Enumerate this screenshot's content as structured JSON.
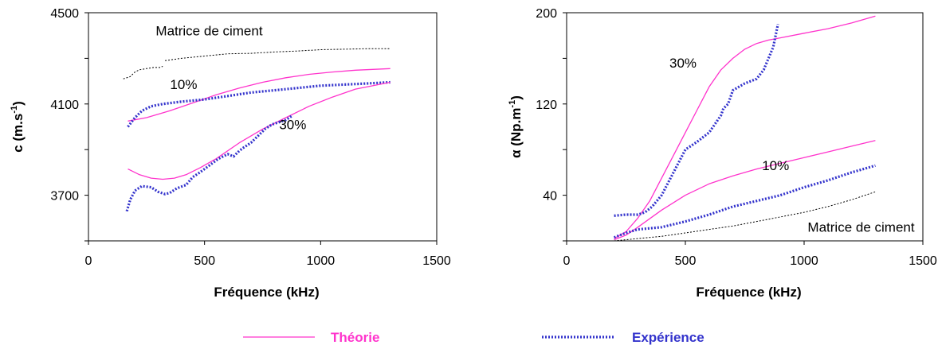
{
  "colors": {
    "theory": "#ff33cc",
    "experiment": "#3333cc",
    "matrix": "#000000"
  },
  "legend": {
    "theory_label": "Théorie",
    "experiment_label": "Expérience"
  },
  "chart_data": [
    {
      "type": "line",
      "xlabel": "Fréquence (kHz)",
      "ylabel_main": "c (m.s",
      "ylabel_sup": "-1",
      "ylabel_close": ")",
      "xlim": [
        0,
        1500
      ],
      "ylim": [
        3500,
        4500
      ],
      "xticks": [
        0,
        500,
        1000,
        1500
      ],
      "yticks": [
        3700,
        4100,
        4500
      ],
      "annotations": [
        {
          "text": "Matrice de ciment",
          "x": 520,
          "y": 4400
        },
        {
          "text": "10%",
          "x": 410,
          "y": 4165
        },
        {
          "text": "30%",
          "x": 880,
          "y": 3990
        }
      ],
      "series": [
        {
          "style": "matrix",
          "x": [
            150,
            180,
            200,
            220,
            250,
            280,
            310,
            320
          ],
          "y": [
            4210,
            4220,
            4240,
            4250,
            4255,
            4260,
            4260,
            4265
          ]
        },
        {
          "style": "matrix",
          "x": [
            330,
            400,
            500,
            600,
            700,
            800,
            900,
            1000,
            1100,
            1200,
            1300
          ],
          "y": [
            4290,
            4300,
            4310,
            4320,
            4322,
            4328,
            4332,
            4338,
            4340,
            4342,
            4342
          ]
        },
        {
          "style": "theory",
          "x": [
            170,
            250,
            350,
            450,
            550,
            650,
            750,
            850,
            950,
            1050,
            1150,
            1300
          ],
          "y": [
            4025,
            4040,
            4070,
            4105,
            4140,
            4170,
            4195,
            4215,
            4230,
            4240,
            4248,
            4255
          ]
        },
        {
          "style": "experiment",
          "x": [
            170,
            200,
            230,
            270,
            320,
            400,
            500,
            600,
            700,
            800,
            900,
            1000,
            1100,
            1200,
            1300
          ],
          "y": [
            4000,
            4040,
            4070,
            4090,
            4100,
            4110,
            4120,
            4135,
            4150,
            4160,
            4170,
            4180,
            4185,
            4190,
            4195
          ]
        },
        {
          "style": "theory",
          "x": [
            170,
            220,
            270,
            320,
            370,
            420,
            480,
            550,
            650,
            750,
            850,
            950,
            1050,
            1150,
            1300
          ],
          "y": [
            3815,
            3790,
            3775,
            3770,
            3775,
            3790,
            3820,
            3860,
            3930,
            3990,
            4040,
            4090,
            4130,
            4165,
            4195
          ]
        },
        {
          "style": "experiment",
          "x": [
            165,
            180,
            200,
            230,
            270,
            300,
            330,
            350,
            380,
            420,
            450,
            480,
            520,
            560,
            600,
            625,
            650,
            670,
            700,
            730,
            760,
            790,
            820,
            850,
            880
          ],
          "y": [
            3630,
            3680,
            3720,
            3740,
            3735,
            3715,
            3705,
            3710,
            3730,
            3745,
            3780,
            3800,
            3830,
            3860,
            3880,
            3870,
            3895,
            3910,
            3930,
            3960,
            3990,
            4010,
            4020,
            4030,
            4050
          ]
        }
      ]
    },
    {
      "type": "line",
      "xlabel": "Fréquence (kHz)",
      "ylabel_main": "α (Np.m",
      "ylabel_sup": "-1",
      "ylabel_close": ")",
      "xlim": [
        0,
        1500
      ],
      "ylim": [
        0,
        200
      ],
      "xticks": [
        0,
        500,
        1000,
        1500
      ],
      "yticks": [
        40,
        120,
        200
      ],
      "annotations": [
        {
          "text": "30%",
          "x": 490,
          "y": 152
        },
        {
          "text": "10%",
          "x": 880,
          "y": 62
        },
        {
          "text": "Matrice de ciment",
          "x": 1240,
          "y": 8
        }
      ],
      "series": [
        {
          "style": "theory",
          "x": [
            200,
            250,
            300,
            350,
            400,
            450,
            500,
            550,
            600,
            650,
            700,
            750,
            800,
            850,
            900,
            1000,
            1100,
            1200,
            1300
          ],
          "y": [
            2,
            8,
            20,
            35,
            55,
            75,
            95,
            115,
            135,
            150,
            160,
            168,
            173,
            176,
            178,
            182,
            186,
            191,
            197
          ]
        },
        {
          "style": "experiment",
          "x": [
            200,
            250,
            300,
            330,
            360,
            400,
            450,
            500,
            550,
            600,
            650,
            660,
            680,
            700,
            750,
            800,
            830,
            850,
            870,
            880,
            890
          ],
          "y": [
            22,
            23,
            23,
            25,
            30,
            40,
            60,
            80,
            87,
            95,
            110,
            116,
            120,
            132,
            138,
            142,
            150,
            160,
            170,
            180,
            190
          ]
        },
        {
          "style": "theory",
          "x": [
            200,
            250,
            300,
            400,
            500,
            600,
            700,
            800,
            900,
            1000,
            1100,
            1200,
            1300
          ],
          "y": [
            1,
            5,
            12,
            27,
            40,
            50,
            57,
            63,
            68,
            73,
            78,
            83,
            88
          ]
        },
        {
          "style": "experiment",
          "x": [
            200,
            250,
            300,
            400,
            500,
            600,
            700,
            800,
            900,
            1000,
            1100,
            1200,
            1300
          ],
          "y": [
            3,
            7,
            10,
            12,
            17,
            23,
            30,
            35,
            40,
            47,
            53,
            60,
            66
          ]
        },
        {
          "style": "matrix",
          "x": [
            200,
            300,
            400,
            500,
            600,
            700,
            800,
            900,
            1000,
            1100,
            1200,
            1300
          ],
          "y": [
            0,
            2,
            4,
            7,
            10,
            13,
            17,
            21,
            25,
            30,
            36,
            43
          ]
        }
      ]
    }
  ]
}
